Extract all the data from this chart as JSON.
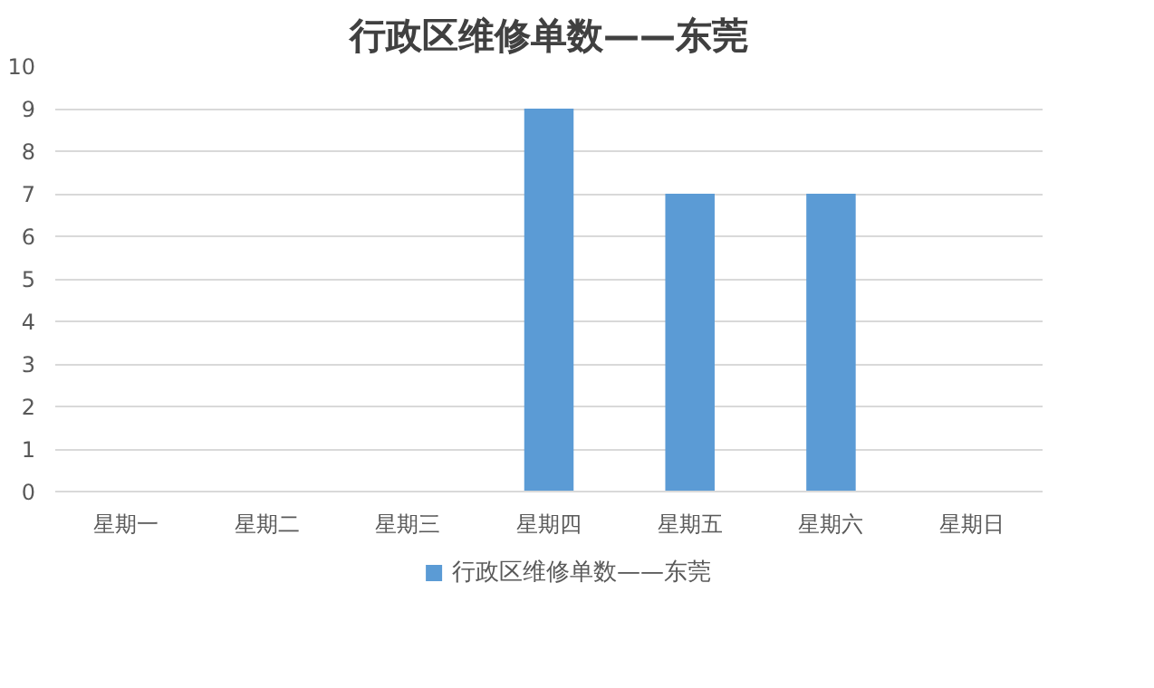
{
  "chart_data": {
    "type": "bar",
    "title": "行政区维修单数——东莞",
    "categories": [
      "星期一",
      "星期二",
      "星期三",
      "星期四",
      "星期五",
      "星期六",
      "星期日"
    ],
    "series": [
      {
        "name": "行政区维修单数——东莞",
        "color": "#5b9bd5",
        "values": [
          0,
          0,
          0,
          9,
          7,
          7,
          0
        ]
      }
    ],
    "ylim": [
      0,
      10
    ],
    "yticks": [
      0,
      1,
      2,
      3,
      4,
      5,
      6,
      7,
      8,
      9,
      10
    ],
    "grid": "y",
    "legend": "bottom"
  }
}
